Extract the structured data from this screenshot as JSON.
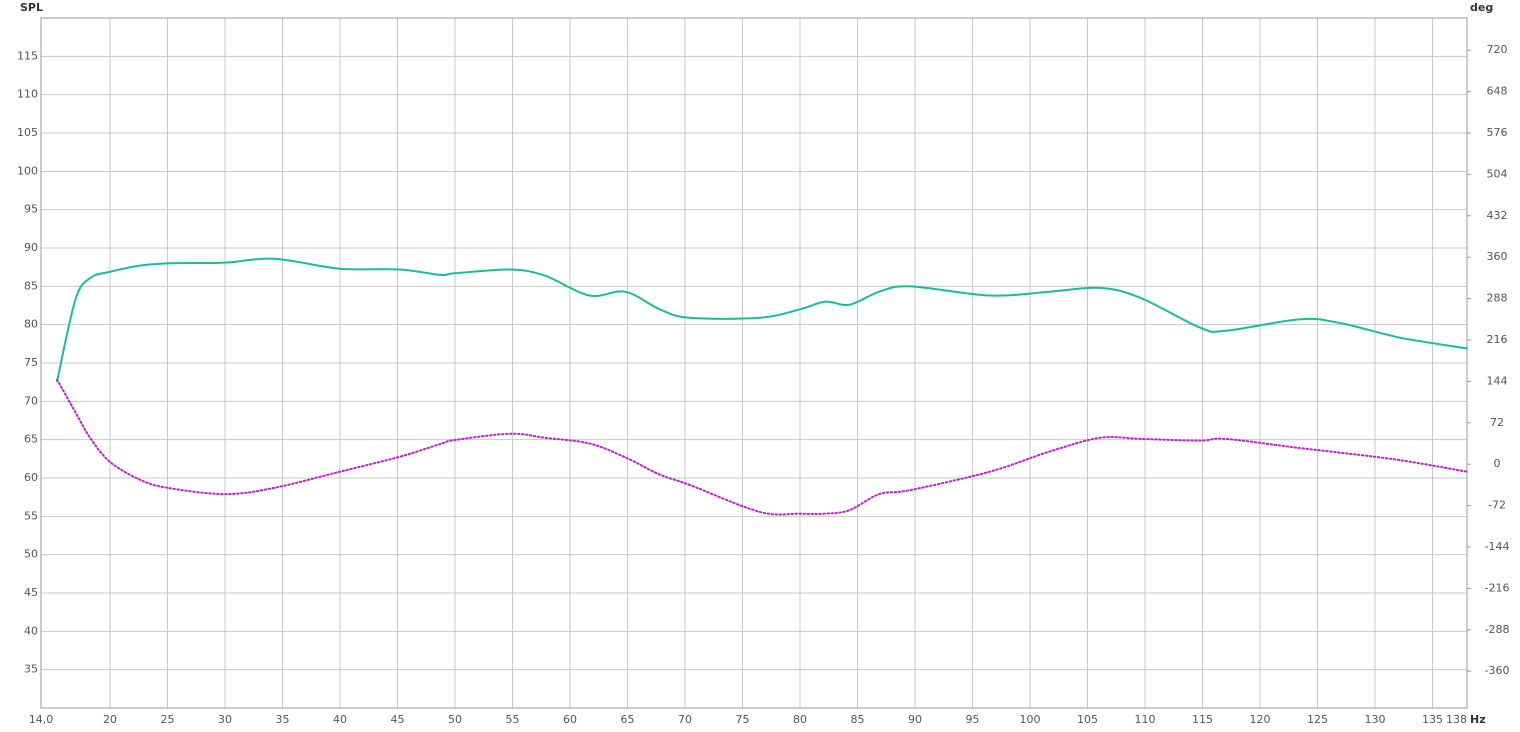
{
  "chart_data": {
    "type": "line",
    "y_label": "SPL",
    "y2_label": "deg",
    "x_label": "Hz",
    "x": [
      15.4,
      17,
      18.3,
      20,
      22.6,
      25,
      30,
      34.3,
      40,
      45.2,
      48.7,
      50,
      54.8,
      57.8,
      61.7,
      64.8,
      67.8,
      70.4,
      76.5,
      80,
      82.2,
      84.3,
      86.9,
      89.6,
      96.5,
      101.7,
      106.1,
      109.6,
      114.8,
      117,
      123.5,
      127,
      132.2,
      138
    ],
    "series": [
      {
        "color": "#1abc9c",
        "style": "solid",
        "values": [
          72.6,
          83.3,
          86.1,
          86.9,
          87.7,
          88.0,
          88.1,
          88.6,
          87.3,
          87.2,
          86.5,
          86.7,
          87.2,
          86.4,
          83.8,
          84.3,
          82.0,
          80.9,
          80.9,
          82.0,
          83.0,
          82.6,
          84.3,
          85.0,
          83.8,
          84.3,
          84.8,
          83.5,
          79.6,
          79.2,
          80.7,
          80.2,
          78.3,
          76.9
        ]
      },
      {
        "color": "#c020d0",
        "style": "dotted",
        "axis": "y2",
        "values": [
          147,
          90,
          45,
          4,
          -27,
          -41,
          -52,
          -41,
          -13,
          13,
          35,
          42,
          53,
          46,
          36,
          12,
          -18,
          -36,
          -83,
          -86,
          -86,
          -80,
          -52,
          -45,
          -13,
          22,
          46,
          44,
          41,
          44,
          28,
          20,
          7,
          -13
        ]
      }
    ],
    "xlim": [
      14,
      138
    ],
    "xticks": [
      {
        "value": 14,
        "label": "14,0"
      },
      20,
      25,
      30,
      35,
      40,
      45,
      50,
      55,
      60,
      65,
      70,
      75,
      80,
      85,
      90,
      95,
      100,
      105,
      110,
      115,
      120,
      125,
      130,
      135,
      138
    ],
    "ylim": [
      30,
      120
    ],
    "yticks": [
      35,
      40,
      45,
      50,
      55,
      60,
      65,
      70,
      75,
      80,
      85,
      90,
      95,
      100,
      105,
      110,
      115
    ],
    "y2lim": [
      -424,
      776
    ],
    "y2ticks": [
      -360,
      -288,
      -216,
      -144,
      -72,
      0,
      72,
      144,
      216,
      288,
      360,
      432,
      504,
      576,
      648,
      720
    ],
    "grid": true
  }
}
